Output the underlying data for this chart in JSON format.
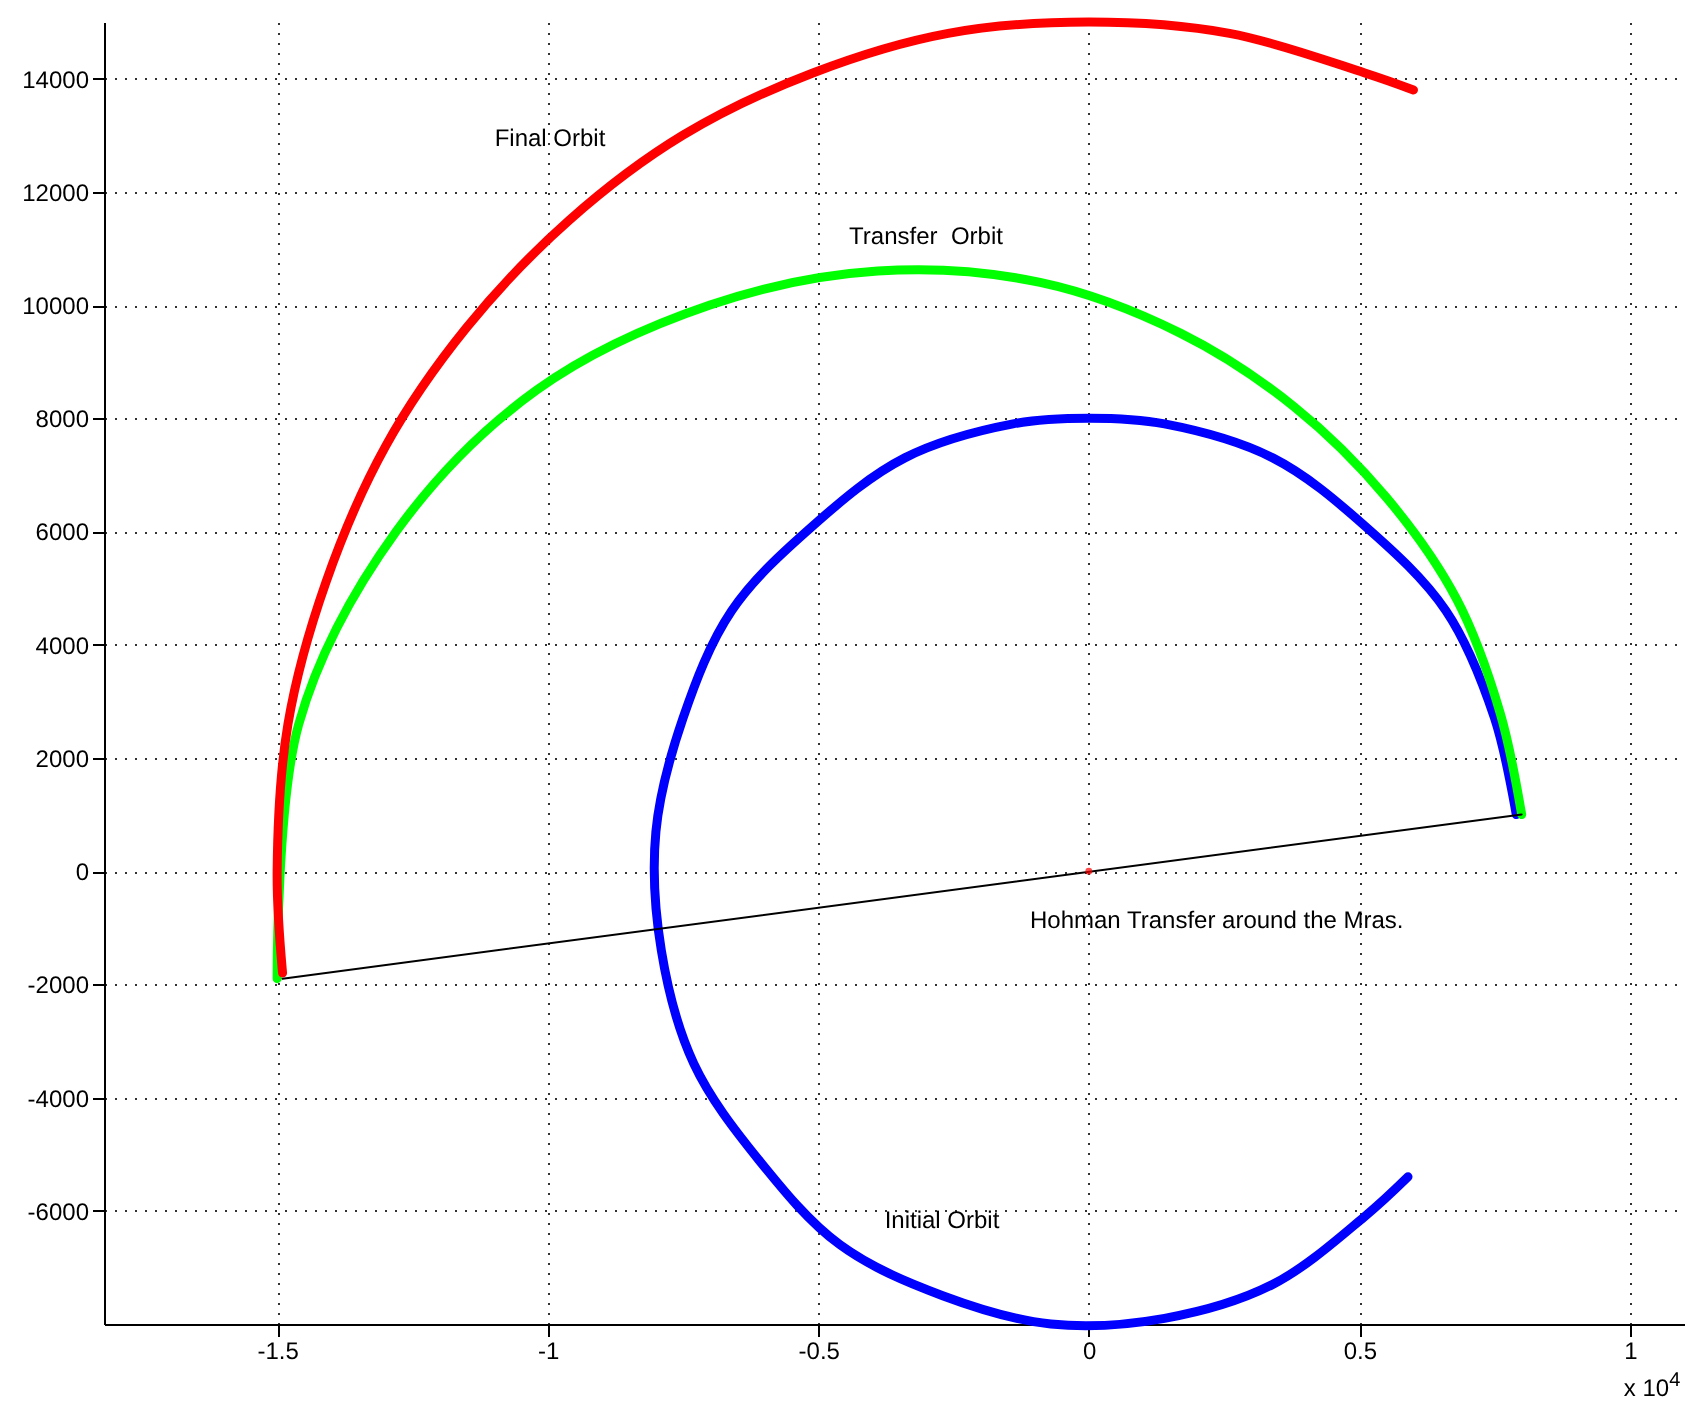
{
  "chart_data": {
    "type": "line",
    "xlim": [
      -1.82,
      1.1
    ],
    "xticks": [
      -1.5,
      -1,
      -0.5,
      0,
      0.5,
      1
    ],
    "ylim": [
      -8000,
      15000
    ],
    "yticks": [
      -6000,
      -4000,
      -2000,
      0,
      2000,
      4000,
      6000,
      8000,
      10000,
      12000,
      14000
    ],
    "grid": true,
    "series": [
      {
        "color": "#0000ff",
        "x": [
          0.79,
          0.75,
          0.66,
          0.51,
          0.34,
          0.14,
          0,
          -0.14,
          -0.34,
          -0.51,
          -0.66,
          -0.75,
          -0.8,
          -0.79,
          -0.73,
          -0.61,
          -0.46,
          -0.27,
          -0.07,
          0.14,
          0.34,
          0.51,
          0.59
        ],
        "values": [
          1000,
          2700,
          4600,
          6100,
          7300,
          7900,
          8000,
          7900,
          7300,
          6100,
          4600,
          2700,
          700,
          -1400,
          -3400,
          -5100,
          -6600,
          -7500,
          -8000,
          -7900,
          -7300,
          -6100,
          -5400
        ]
      },
      {
        "color": "#00ff00",
        "x": [
          0.8,
          0.76,
          0.68,
          0.55,
          0.38,
          0.17,
          -0.09,
          -0.39,
          -0.7,
          -1.02,
          -1.28,
          -1.46,
          -1.5
        ],
        "values": [
          1000,
          2800,
          4800,
          6600,
          8200,
          9500,
          10400,
          10600,
          10000,
          8500,
          6000,
          2600,
          -1900
        ]
      },
      {
        "color": "#ff0000",
        "x": [
          -1.49,
          -1.5,
          -1.48,
          -1.41,
          -1.3,
          -1.15,
          -0.96,
          -0.75,
          -0.51,
          -0.26,
          0,
          0.26,
          0.51,
          0.6
        ],
        "values": [
          -1800,
          0,
          2600,
          5100,
          7500,
          9600,
          11500,
          13000,
          14100,
          14800,
          15000,
          14800,
          14100,
          13800
        ]
      },
      {
        "color": "#000000",
        "x": [
          0.8,
          -1.49
        ],
        "values": [
          1000,
          -1900
        ]
      },
      {
        "type": "scatter",
        "color": "#ff0000",
        "x": [
          0
        ],
        "values": [
          0
        ]
      }
    ],
    "annotations": [
      "Final Orbit",
      "Transfer  Orbit",
      "Hohman Transfer around the Mras.",
      "Initial Orbit",
      "x 10$^{4}$"
    ]
  }
}
